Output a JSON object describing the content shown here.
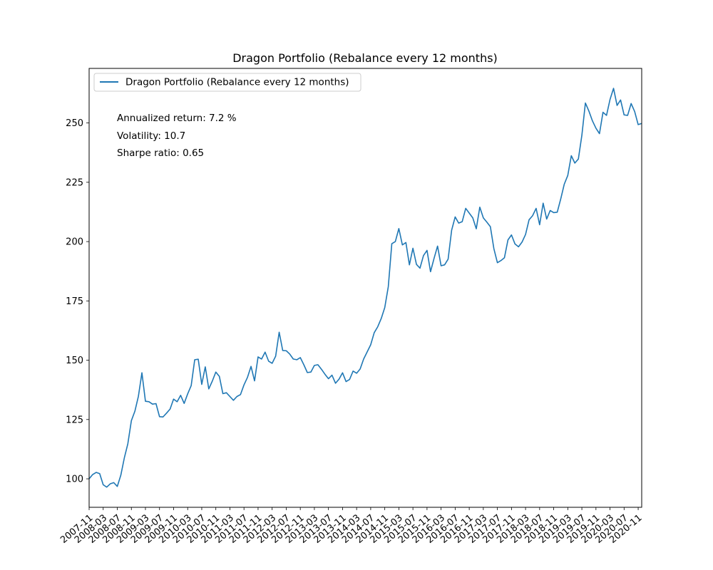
{
  "chart_data": {
    "type": "line",
    "title": "Dragon Portfolio (Rebalance every 12 months)",
    "xlabel": "",
    "ylabel": "",
    "ylim": [
      88,
      273
    ],
    "yticks": [
      100,
      125,
      150,
      175,
      200,
      225,
      250
    ],
    "grid": false,
    "legend_position": "upper-left",
    "color": "#1f77b4",
    "xtick_labels": [
      "2007-11",
      "2008-03",
      "2008-07",
      "2008-11",
      "2009-03",
      "2009-07",
      "2009-11",
      "2010-03",
      "2010-07",
      "2010-11",
      "2011-03",
      "2011-07",
      "2011-11",
      "2012-03",
      "2012-07",
      "2012-11",
      "2013-03",
      "2013-07",
      "2013-11",
      "2014-03",
      "2014-07",
      "2014-11",
      "2015-03",
      "2015-07",
      "2015-11",
      "2016-03",
      "2016-07",
      "2016-11",
      "2017-03",
      "2017-07",
      "2017-11",
      "2018-03",
      "2018-07",
      "2018-11",
      "2019-03",
      "2019-07",
      "2019-11",
      "2020-03",
      "2020-07",
      "2020-11"
    ],
    "series": [
      {
        "name": "Dragon Portfolio (Rebalance every 12 months)",
        "x_start": "2007-11",
        "x_step_months": 1,
        "values": [
          100,
          101.8,
          102.7,
          102.2,
          97.5,
          96.5,
          97.9,
          98.4,
          96.8,
          101.5,
          108.8,
          114.8,
          124.5,
          128.5,
          134.8,
          144.7,
          132.7,
          132.5,
          131.5,
          131.7,
          126.2,
          126.1,
          127.7,
          129.4,
          133.6,
          132.5,
          135.2,
          131.8,
          135.8,
          139.3,
          150.2,
          150.4,
          139.8,
          147.2,
          137.9,
          141.2,
          145.0,
          143.2,
          135.9,
          136.3,
          134.7,
          133.1,
          134.7,
          135.5,
          139.6,
          142.8,
          147.4,
          141.3,
          151.4,
          150.5,
          153.4,
          149.6,
          148.7,
          151.7,
          161.8,
          154.1,
          154.0,
          152.6,
          150.5,
          150.2,
          151.1,
          148.1,
          144.8,
          145.0,
          147.8,
          148.1,
          146.2,
          144.1,
          142.2,
          143.7,
          140.3,
          142.0,
          144.7,
          141.0,
          141.9,
          145.4,
          144.5,
          146.3,
          150.5,
          153.5,
          156.5,
          161.6,
          164.1,
          167.6,
          172.2,
          181.0,
          199.1,
          200.0,
          205.5,
          198.6,
          199.6,
          190.2,
          197.2,
          190.4,
          188.8,
          194.1,
          196.3,
          187.3,
          192.9,
          198.1,
          189.8,
          190.2,
          192.6,
          204.8,
          210.4,
          207.8,
          208.4,
          214.0,
          212.0,
          210.0,
          205.4,
          214.5,
          210.0,
          208.2,
          206.3,
          197.0,
          191.1,
          192.0,
          193.2,
          200.7,
          202.8,
          199.0,
          197.8,
          199.8,
          203.0,
          209.2,
          210.9,
          214.0,
          207.1,
          216.2,
          209.5,
          213.1,
          212.2,
          212.4,
          218.0,
          224.2,
          227.9,
          236.2,
          233.1,
          234.8,
          244.8,
          258.4,
          255.0,
          250.9,
          247.8,
          245.5,
          254.5,
          253.2,
          259.9,
          264.6,
          257.4,
          259.7,
          253.4,
          253.2,
          258.2,
          254.8,
          249.3,
          249.8
        ]
      }
    ],
    "annotations": [
      "Annualized return: 7.2 %",
      "Volatility: 10.7",
      "Sharpe ratio: 0.65"
    ]
  }
}
